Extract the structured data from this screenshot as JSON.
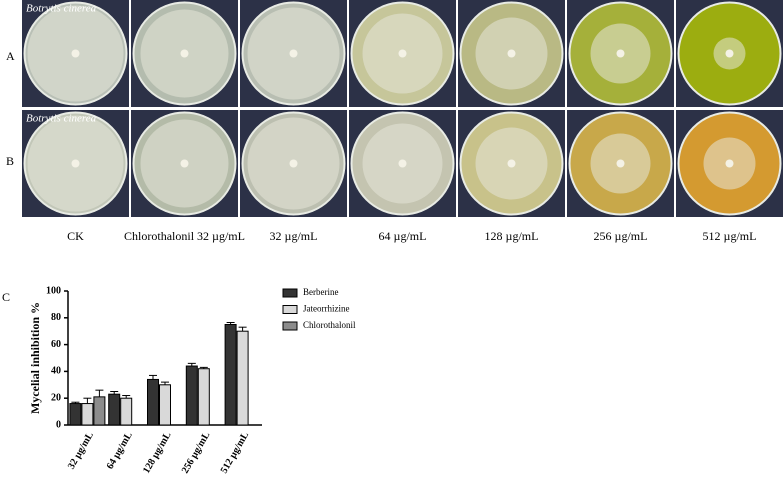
{
  "row_labels": [
    "A",
    "B"
  ],
  "image_labels": [
    "Botrytis cinerea",
    "Botrytis cinerea"
  ],
  "column_labels": [
    "CK",
    "Chlorothalonil 32 µg/mL",
    "32 µg/mL",
    "64 µg/mL",
    "128 µg/mL",
    "256 µg/mL",
    "512 µg/mL"
  ],
  "panel_label": "C",
  "chart_data": {
    "type": "bar",
    "ylabel": "Mycelial inhibition %",
    "categories": [
      "32 µg/mL",
      "64 µg/mL",
      "128 µg/mL",
      "256 µg/mL",
      "512 µg/mL"
    ],
    "series": [
      {
        "name": "Berberine",
        "color": "#333333",
        "values": [
          16,
          23,
          34,
          44,
          75
        ],
        "errors": [
          1,
          2,
          3,
          2,
          1.5
        ]
      },
      {
        "name": "Jateorrhizine",
        "color": "#d9d9d9",
        "values": [
          16,
          20,
          30,
          42,
          70
        ],
        "errors": [
          4,
          2,
          2,
          1,
          3
        ]
      },
      {
        "name": "Chlorothalonil",
        "color": "#8c8c8c",
        "values": [
          21,
          null,
          null,
          null,
          null
        ],
        "errors": [
          5,
          null,
          null,
          null,
          null
        ]
      }
    ],
    "ylim": [
      0,
      100
    ],
    "yticks": [
      0,
      20,
      40,
      60,
      80,
      100
    ]
  }
}
